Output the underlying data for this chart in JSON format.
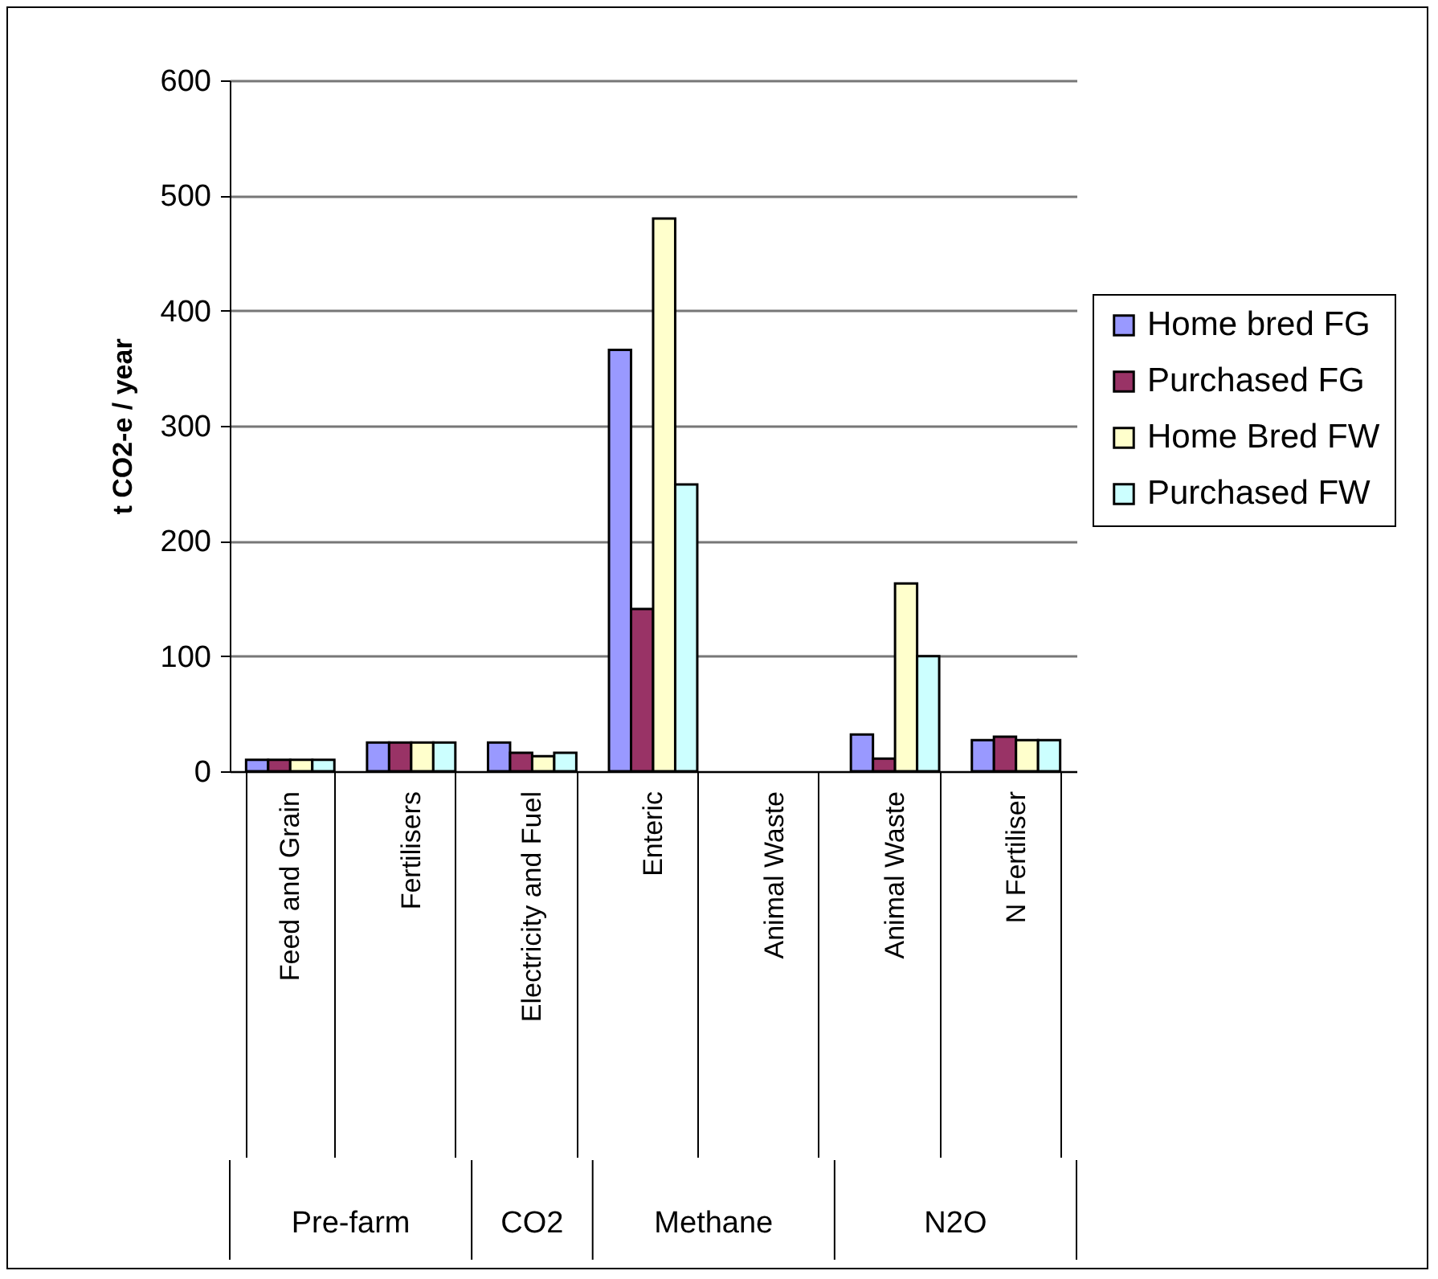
{
  "chart_data": {
    "type": "bar",
    "ylabel": "t CO2-e / year",
    "categories": [
      "Feed and Grain",
      "Fertilisers",
      "Electricity and Fuel",
      "Enteric",
      "Animal Waste",
      "Animal Waste",
      "N Fertiliser"
    ],
    "series": [
      {
        "name": "Home bred FG",
        "color": "#9999ff",
        "values": [
          10,
          25,
          25,
          366,
          null,
          32,
          27
        ]
      },
      {
        "name": "Purchased FG",
        "color": "#993366",
        "values": [
          10,
          25,
          16,
          141,
          null,
          11,
          30
        ]
      },
      {
        "name": "Home Bred FW",
        "color": "#ffffcc",
        "values": [
          10,
          25,
          13,
          480,
          null,
          163,
          27
        ]
      },
      {
        "name": "Purchased FW",
        "color": "#ccffff",
        "values": [
          10,
          25,
          16,
          249,
          null,
          100,
          27
        ]
      }
    ],
    "annotations": [
      "Pre-farm",
      "CO2",
      "Methane",
      "N2O"
    ],
    "ylim": [
      0,
      600
    ],
    "yticks": [
      0,
      100,
      200,
      300,
      400,
      500,
      600
    ],
    "grid": "y",
    "legend": "right"
  }
}
